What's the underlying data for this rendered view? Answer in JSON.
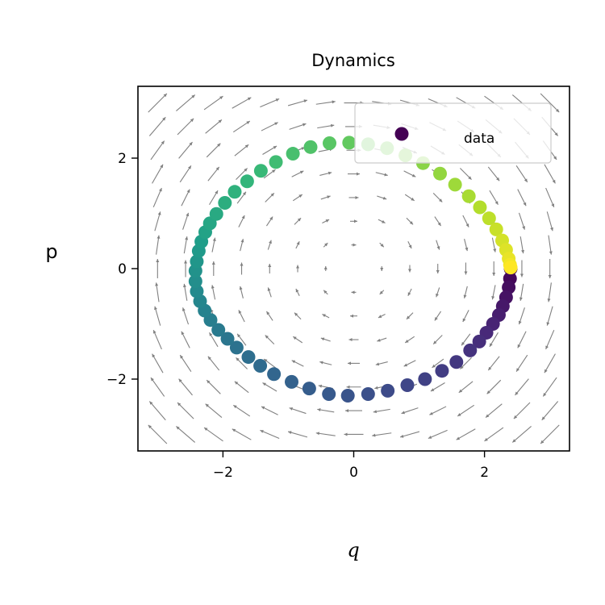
{
  "chart_data": {
    "type": "scatter",
    "title": "Dynamics",
    "xlabel": "q",
    "ylabel": "p",
    "xlim": [
      -3.3,
      3.3
    ],
    "ylim": [
      -3.3,
      3.3
    ],
    "xticks": [
      -2,
      0,
      2
    ],
    "yticks": [
      -2,
      0,
      2
    ],
    "xtick_labels": [
      "−2",
      "0",
      "2"
    ],
    "ytick_labels": [
      "−2",
      "0",
      "2"
    ],
    "grid": false,
    "legend": {
      "position": "top-right",
      "entries": [
        "data"
      ]
    },
    "colormap": "viridis",
    "quiver_color": "#808080",
    "series": [
      {
        "name": "data",
        "x": [
          2.4,
          2.39,
          2.37,
          2.33,
          2.28,
          2.22,
          2.13,
          2.03,
          1.92,
          1.78,
          1.57,
          1.35,
          1.09,
          0.82,
          0.52,
          0.22,
          -0.09,
          -0.38,
          -0.68,
          -0.95,
          -1.22,
          -1.43,
          -1.61,
          -1.79,
          -1.93,
          -2.07,
          -2.19,
          -2.28,
          -2.35,
          -2.4,
          -2.42,
          -2.42,
          -2.4,
          -2.37,
          -2.33,
          -2.27,
          -2.2,
          -2.1,
          -1.97,
          -1.82,
          -1.63,
          -1.42,
          -1.19,
          -0.93,
          -0.66,
          -0.37,
          -0.07,
          0.22,
          0.51,
          0.79,
          1.06,
          1.32,
          1.55,
          1.76,
          1.93,
          2.07,
          2.18,
          2.27,
          2.33,
          2.37,
          2.39,
          2.4
        ],
        "y": [
          0.0,
          -0.18,
          -0.34,
          -0.52,
          -0.68,
          -0.84,
          -1.0,
          -1.16,
          -1.32,
          -1.48,
          -1.69,
          -1.85,
          -2.0,
          -2.11,
          -2.21,
          -2.27,
          -2.3,
          -2.27,
          -2.17,
          -2.05,
          -1.91,
          -1.76,
          -1.6,
          -1.43,
          -1.27,
          -1.11,
          -0.93,
          -0.76,
          -0.59,
          -0.41,
          -0.23,
          -0.04,
          0.13,
          0.32,
          0.49,
          0.66,
          0.82,
          0.99,
          1.19,
          1.39,
          1.58,
          1.77,
          1.93,
          2.08,
          2.2,
          2.27,
          2.28,
          2.25,
          2.18,
          2.05,
          1.91,
          1.72,
          1.52,
          1.31,
          1.11,
          0.91,
          0.71,
          0.51,
          0.34,
          0.18,
          0.07,
          0.02
        ]
      }
    ]
  }
}
